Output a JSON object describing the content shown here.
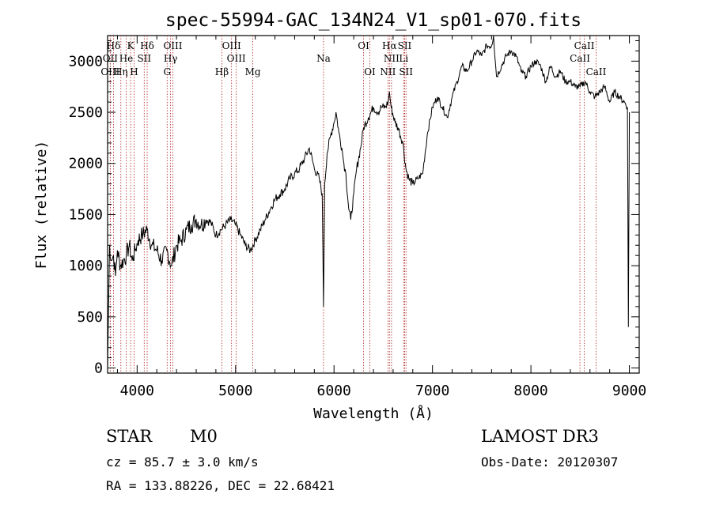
{
  "header": {
    "title": "spec-55994-GAC_134N24_V1_sp01-070.fits"
  },
  "info": {
    "classification": "STAR",
    "subclass": "M0",
    "survey": "LAMOST DR3",
    "redshift": "cz = 85.7 ± 3.0 km/s",
    "obs_date": "Obs-Date: 20120307",
    "coords": "RA = 133.88226, DEC =  22.68421"
  },
  "chart_data": {
    "type": "line",
    "title": "spec-55994-GAC_134N24_V1_sp01-070.fits",
    "xlabel": "Wavelength (Å)",
    "ylabel": "Flux (relative)",
    "xlim": [
      3700,
      9100
    ],
    "ylim": [
      -50,
      3250
    ],
    "xticks": [
      4000,
      5000,
      6000,
      7000,
      8000,
      9000
    ],
    "yticks": [
      0,
      500,
      1000,
      1500,
      2000,
      2500,
      3000
    ],
    "grid": false,
    "line_color": "#000000",
    "marker_color": "#b22222",
    "series": [
      {
        "x": [
          3700,
          3720,
          3740,
          3760,
          3780,
          3800,
          3830,
          3860,
          3890,
          3920,
          3950,
          3980,
          4010,
          4050,
          4100,
          4150,
          4200,
          4250,
          4300,
          4350,
          4400,
          4450,
          4500,
          4550,
          4600,
          4650,
          4700,
          4750,
          4800,
          4850,
          4900,
          4950,
          5000,
          5050,
          5100,
          5150,
          5200,
          5250,
          5300,
          5350,
          5400,
          5450,
          5500,
          5550,
          5600,
          5650,
          5700,
          5750,
          5800,
          5850,
          5880,
          5893,
          5905,
          5930,
          5960,
          6000,
          6020,
          6050,
          6080,
          6100,
          6120,
          6150,
          6170,
          6200,
          6230,
          6270,
          6300,
          6350,
          6400,
          6450,
          6480,
          6520,
          6550,
          6563,
          6580,
          6620,
          6650,
          6700,
          6730,
          6760,
          6800,
          6850,
          6900,
          6950,
          7000,
          7050,
          7100,
          7150,
          7200,
          7250,
          7300,
          7350,
          7400,
          7450,
          7500,
          7550,
          7600,
          7620,
          7650,
          7700,
          7750,
          7800,
          7850,
          7900,
          7950,
          8000,
          8050,
          8100,
          8150,
          8200,
          8250,
          8300,
          8350,
          8400,
          8450,
          8500,
          8550,
          8600,
          8650,
          8700,
          8750,
          8800,
          8850,
          8900,
          8950,
          8980,
          8990,
          9000
        ],
        "y": [
          0,
          1200,
          1050,
          1100,
          900,
          1150,
          1000,
          1050,
          1100,
          1200,
          1050,
          1150,
          1250,
          1300,
          1350,
          1200,
          1150,
          1050,
          1150,
          1000,
          1200,
          1250,
          1350,
          1400,
          1450,
          1400,
          1450,
          1420,
          1300,
          1350,
          1400,
          1450,
          1400,
          1300,
          1200,
          1150,
          1250,
          1350,
          1450,
          1550,
          1650,
          1700,
          1750,
          1850,
          1900,
          1950,
          2050,
          2150,
          1950,
          1850,
          1700,
          600,
          1800,
          2100,
          2250,
          2400,
          2500,
          2300,
          2150,
          2000,
          1900,
          1550,
          1450,
          1700,
          1950,
          2150,
          2350,
          2450,
          2550,
          2500,
          2550,
          2550,
          2600,
          2700,
          2550,
          2400,
          2350,
          2200,
          1950,
          1850,
          1800,
          1850,
          1900,
          2300,
          2550,
          2650,
          2550,
          2450,
          2650,
          2800,
          2950,
          2900,
          3000,
          3100,
          3050,
          3150,
          3150,
          3250,
          2850,
          2950,
          3050,
          3100,
          3050,
          2900,
          2850,
          2950,
          3000,
          2950,
          2800,
          2950,
          2850,
          2900,
          2800,
          2800,
          2750,
          2750,
          2800,
          2700,
          2650,
          2700,
          2750,
          2600,
          2700,
          2650,
          2600,
          2550,
          400,
          2500
        ]
      }
    ],
    "lines": [
      {
        "label": "Hδ",
        "x": 3760,
        "row": 1
      },
      {
        "label": "K",
        "x": 3934,
        "row": 1
      },
      {
        "label": "Hδ",
        "x": 4102,
        "row": 1
      },
      {
        "label": "OIII",
        "x": 4363,
        "row": 1
      },
      {
        "label": "OIII",
        "x": 4959,
        "row": 1
      },
      {
        "label": "OI",
        "x": 6300,
        "row": 1
      },
      {
        "label": "Hα",
        "x": 6563,
        "row": 1
      },
      {
        "label": "SII",
        "x": 6717,
        "row": 1
      },
      {
        "label": "CaII",
        "x": 8542,
        "row": 1
      },
      {
        "label": "OII",
        "x": 3727,
        "row": 2
      },
      {
        "label": "He",
        "x": 3889,
        "row": 2
      },
      {
        "label": "SII",
        "x": 4072,
        "row": 2
      },
      {
        "label": "Hγ",
        "x": 4340,
        "row": 2
      },
      {
        "label": "OIII",
        "x": 5007,
        "row": 2
      },
      {
        "label": "Na",
        "x": 5893,
        "row": 2
      },
      {
        "label": "NII",
        "x": 6584,
        "row": 2
      },
      {
        "label": "Li",
        "x": 6708,
        "row": 2
      },
      {
        "label": "CaII",
        "x": 8498,
        "row": 2
      },
      {
        "label": "OIII",
        "x": 3727,
        "row": 3
      },
      {
        "label": "Hη",
        "x": 3835,
        "row": 3
      },
      {
        "label": "H",
        "x": 3969,
        "row": 3
      },
      {
        "label": "G",
        "x": 4305,
        "row": 3
      },
      {
        "label": "Hβ",
        "x": 4861,
        "row": 3
      },
      {
        "label": "Mg",
        "x": 5175,
        "row": 3
      },
      {
        "label": "OI",
        "x": 6364,
        "row": 3
      },
      {
        "label": "NII",
        "x": 6548,
        "row": 3
      },
      {
        "label": "SII",
        "x": 6731,
        "row": 3
      },
      {
        "label": "CaII",
        "x": 8662,
        "row": 3
      }
    ]
  }
}
